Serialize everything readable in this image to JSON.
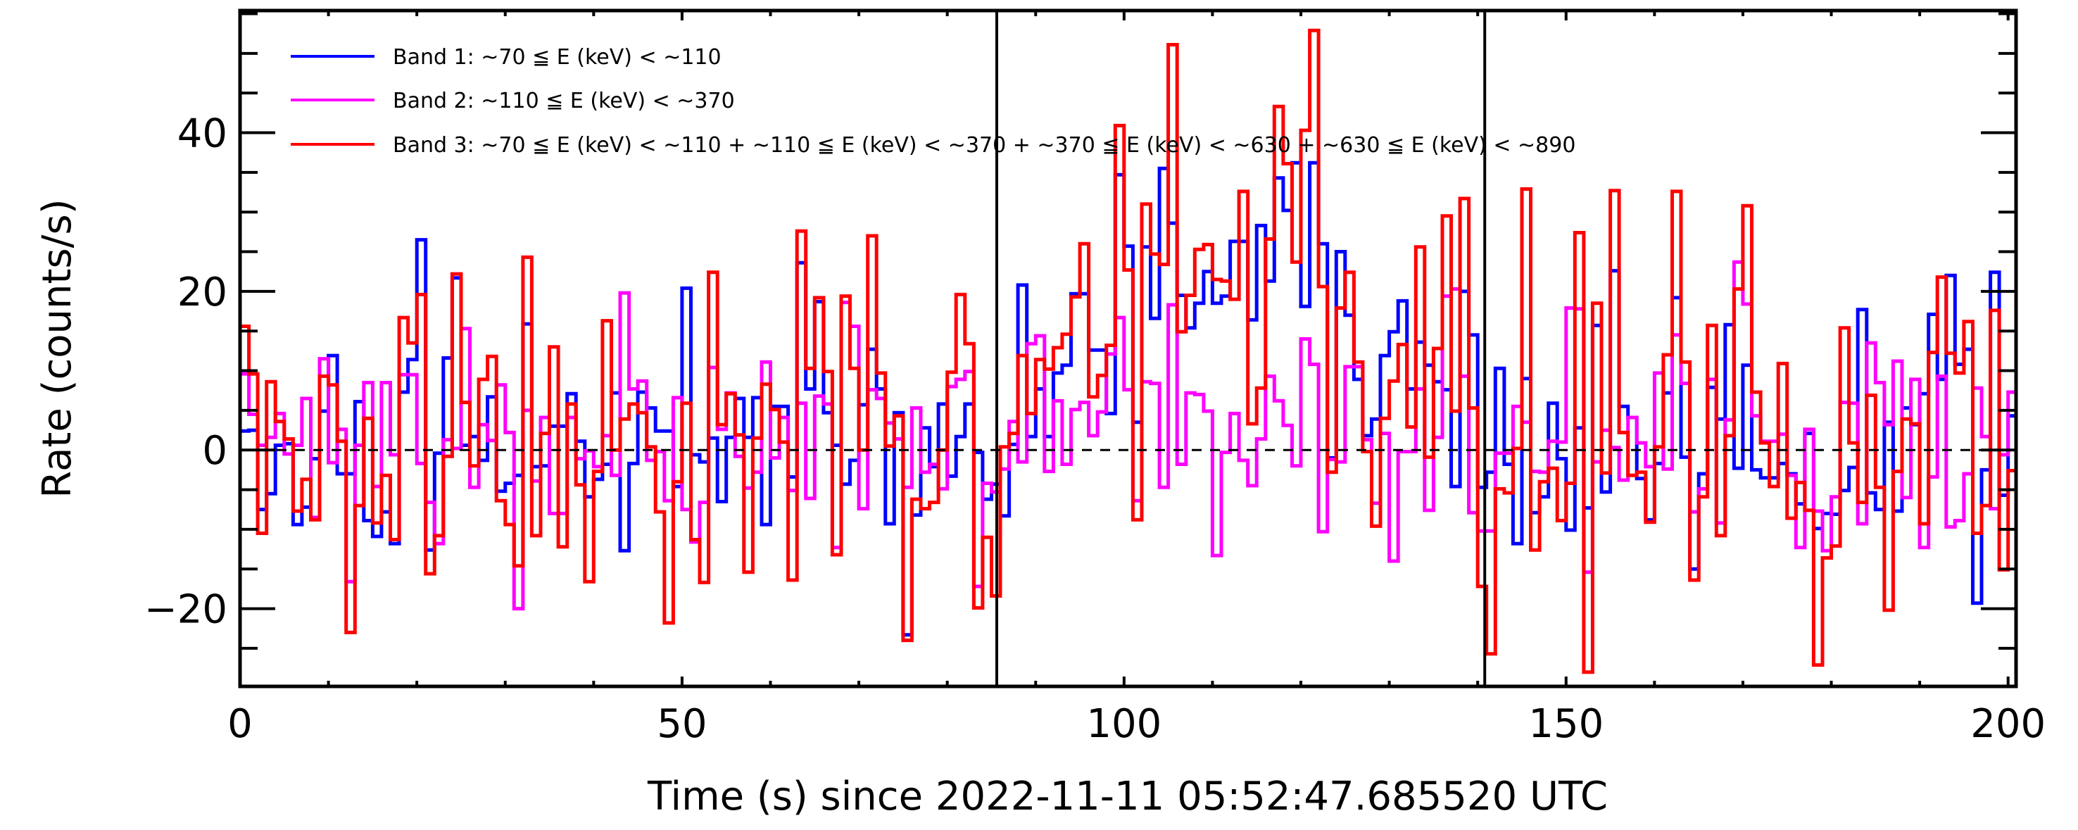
{
  "chart_data": {
    "type": "line",
    "style": "histogram-step",
    "xlabel": "Time (s) since 2022-11-11 05:52:47.685520 UTC",
    "ylabel": "Rate (counts/s)",
    "xlim": [
      0,
      200.9
    ],
    "ylim": [
      -29.8,
      55.4
    ],
    "x_bin_start": 0,
    "x_bin_width": 1,
    "xticks": [
      {
        "value": 0,
        "label": "0"
      },
      {
        "value": 50,
        "label": "50"
      },
      {
        "value": 100,
        "label": "100"
      },
      {
        "value": 150,
        "label": "150"
      },
      {
        "value": 200,
        "label": "200"
      }
    ],
    "yticks": [
      {
        "value": -20,
        "label": "−20"
      },
      {
        "value": 0,
        "label": "0"
      },
      {
        "value": 20,
        "label": "20"
      },
      {
        "value": 40,
        "label": "40"
      }
    ],
    "x_minor_step": 10,
    "y_minor_step": 5,
    "reference_hline": 0,
    "vertical_markers": [
      85.6,
      140.8
    ],
    "legend_position": "top-left",
    "series": [
      {
        "name": "Band 1: ~70 ≦ E (keV) < ~110",
        "color": "#0000ff",
        "values": [
          2.4,
          2.5,
          -7.5,
          -5.5,
          0.6,
          0.8,
          -9.4,
          -7.2,
          -1.1,
          4.9,
          11.9,
          -3,
          -3,
          6.1,
          -8.9,
          -10.9,
          -7.8,
          -11.8,
          7.3,
          11.4,
          26.5,
          -12.6,
          -0.4,
          11.6,
          21.7,
          0.6,
          1.7,
          -1.3,
          6.7,
          -5.2,
          -4.2,
          -3.2,
          15.9,
          -2.1,
          -2,
          3,
          3,
          7.1,
          1.1,
          -5.9,
          -3.7,
          -1.8,
          7.2,
          -12.7,
          -1.7,
          7.3,
          5.3,
          2.4,
          2.4,
          -4.6,
          20.4,
          -0.6,
          -1.5,
          1.5,
          -6.5,
          1.6,
          6.5,
          1.6,
          6.6,
          -9.4,
          5.5,
          5.5,
          -3.4,
          23.6,
          7.7,
          18.7,
          4.7,
          0.6,
          -4.3,
          -1.3,
          5.7,
          12.7,
          7.7,
          -9.3,
          4.7,
          -23.3,
          -8.2,
          2.8,
          -2.1,
          5.8,
          -3.3,
          1.7,
          5.8,
          -0.3,
          -6.2,
          -4.3,
          -8.3,
          0.7,
          20.8,
          1.7,
          7.7,
          1.7,
          9.7,
          10.7,
          19.7,
          19.7,
          12.6,
          12.6,
          4.6,
          34.7,
          25.7,
          3.5,
          25.6,
          16.6,
          35.5,
          28.6,
          19.5,
          15.4,
          18.5,
          22.5,
          18.5,
          19.4,
          26.3,
          26.3,
          16.4,
          28.3,
          21.3,
          34.3,
          30.2,
          36.2,
          18.1,
          36.2,
          26,
          -1,
          25,
          17,
          8.9,
          1.8,
          3.9,
          11.9,
          14.9,
          18.8,
          7.7,
          13.6,
          10.7,
          8.6,
          7.6,
          -4.6,
          20,
          14.5,
          -4.7,
          -2.8,
          10.3,
          -1.8,
          -11.8,
          9,
          -7.9,
          -5.9,
          5.9,
          -1.1,
          -10.1,
          2.8,
          -7.3,
          15.7,
          -5.3,
          22.6,
          5.5,
          4.1,
          -3.6,
          -8.8,
          -1.7,
          7.2,
          19.2,
          -0.9,
          -15,
          -3,
          7.9,
          3.9,
          15.8,
          -2.3,
          10.7,
          -2.5,
          -3.5,
          -3.5,
          -1.7,
          -3,
          -6.8,
          2.1,
          -9.9,
          -8,
          -8.1,
          -5.1,
          -2.2,
          17.7,
          -5.4,
          -7.5,
          3.5,
          -7.7,
          5.3,
          3.2,
          7.1,
          17.1,
          8.9,
          22,
          10.8,
          12.7,
          -19.3,
          -2.5,
          22.4,
          -5.7,
          4.3
        ]
      },
      {
        "name": "Band 2: ~110 ≦ E (keV) < ~370",
        "color": "#ff00ff",
        "values": [
          9.6,
          4.5,
          0.6,
          1.6,
          4.6,
          -0.5,
          0.6,
          6.5,
          -8.5,
          11.5,
          -1.6,
          2.6,
          -16.6,
          0.6,
          8.5,
          -4.6,
          8.5,
          -0.6,
          9.5,
          9.5,
          -1.7,
          -6.6,
          -11.8,
          1.3,
          0.2,
          15.3,
          -4.7,
          3.2,
          1.2,
          8.2,
          2.2,
          -20,
          5,
          -3.9,
          4.1,
          -8,
          -8,
          4.1,
          -1.1,
          -0.1,
          -2.1,
          1.8,
          -3.2,
          19.8,
          7.7,
          8.7,
          -1.3,
          -0.2,
          -6.4,
          6.6,
          -7.5,
          -11.6,
          -6.6,
          10.4,
          2.6,
          7.2,
          -0.8,
          -4.8,
          -2.8,
          11.1,
          -1,
          4.1,
          -5.1,
          5.9,
          -6.1,
          6.8,
          5.8,
          -12.3,
          18.6,
          15.6,
          -7.4,
          7.6,
          6.5,
          3.4,
          1.4,
          -4.7,
          5.3,
          -2.8,
          -1.8,
          -4.9,
          8,
          8.9,
          9.9,
          -17.2,
          -4.2,
          -5.3,
          -2.4,
          3.6,
          -1.5,
          13.4,
          14.4,
          -2.7,
          6.2,
          -1.8,
          5.1,
          6,
          1.8,
          4.8,
          12.1,
          16.7,
          7.6,
          -6.4,
          8.6,
          8.4,
          -4.7,
          18.3,
          -1.8,
          7.2,
          7,
          4.9,
          -13.3,
          -0.3,
          4.6,
          -1.3,
          -4.5,
          1.4,
          9.3,
          6.2,
          3.1,
          -2,
          14,
          10.8,
          -10.3,
          -1.2,
          -1.5,
          10.5,
          10.5,
          1.3,
          -6.7,
          2.1,
          -14,
          -0.2,
          -0.2,
          7.7,
          -7.6,
          1.6,
          19.4,
          20.3,
          9.3,
          -7.9,
          -10.2,
          -10.2,
          -0.4,
          -0.4,
          5.5,
          3.5,
          -2.7,
          -2.8,
          1.1,
          1,
          17.9,
          17.8,
          -15.4,
          -1.5,
          2.5,
          0.3,
          -3.8,
          4.1,
          0.9,
          -2.1,
          9.7,
          -2.4,
          14.5,
          8.4,
          -7.8,
          -4.9,
          8.9,
          -9.2,
          3.8,
          23.7,
          18.4,
          4.3,
          1.1,
          1.1,
          2,
          -3.2,
          -12.3,
          2.6,
          -7.7,
          -12.7,
          -5.9,
          6,
          5.9,
          -9.3,
          13.5,
          8.5,
          3.2,
          11.2,
          -6,
          8.9,
          -12.3,
          -3.4,
          9.3,
          -9.7,
          -8.9,
          -3,
          7.8,
          1.7,
          -7.4,
          -0.6,
          7.3
        ]
      },
      {
        "name": "Band 3: ~70 ≦ E (keV) < ~110 + ~110 ≦ E (keV) < ~370 + ~370 ≦ E (keV) < ~630 + ~630 ≦ E (keV) < ~890",
        "color": "#ff0000",
        "values": [
          15.6,
          9.6,
          -10.5,
          8.6,
          3.6,
          1.4,
          -7.7,
          -3.7,
          -8.8,
          9.3,
          8.2,
          1.1,
          -23,
          -7,
          4,
          -9.2,
          -3.2,
          -11.3,
          16.7,
          13.5,
          19.6,
          -15.6,
          -10.8,
          -0.8,
          22.2,
          6,
          -2,
          8.9,
          11.8,
          -6.4,
          -9.4,
          -14.6,
          24.3,
          -10.8,
          2.1,
          13,
          -12.2,
          5.8,
          -4.4,
          -16.6,
          -2.7,
          16.3,
          0,
          3.9,
          5.8,
          4.7,
          0.4,
          -7.8,
          -21.8,
          -4,
          5.9,
          -11.3,
          -16.7,
          22.4,
          3.2,
          7.1,
          1.9,
          -15.4,
          1.5,
          8.3,
          5.1,
          1,
          -16.4,
          27.6,
          10.3,
          19.2,
          9.9,
          -13.2,
          19.4,
          10.3,
          0,
          27,
          9.7,
          0.5,
          4.3,
          -24,
          -6.2,
          -7.4,
          -6.6,
          0,
          9.8,
          19.6,
          13.4,
          -19.9,
          -11,
          -18.4,
          0.4,
          2.1,
          11.9,
          4.6,
          11.4,
          10.2,
          12.9,
          14.6,
          19.3,
          26,
          6.7,
          9.4,
          13.2,
          40.9,
          22.7,
          -8.8,
          31,
          24.7,
          23.4,
          51.1,
          14.9,
          19.5,
          25.3,
          25.9,
          21.5,
          21.3,
          19,
          32.6,
          3.3,
          7.8,
          26.6,
          43.3,
          36.1,
          23.7,
          40.3,
          52.9,
          20.6,
          -2.8,
          17.9,
          22.4,
          11.1,
          -0.2,
          -9.6,
          4,
          8.7,
          13.3,
          2.9,
          25.6,
          -0.9,
          12.8,
          29.5,
          4.9,
          31.7,
          5.3,
          -17.2,
          -25.7,
          -4.9,
          -5.4,
          0.2,
          32.9,
          -12.6,
          -4,
          -2.3,
          -8.9,
          -4.2,
          27.4,
          -28,
          18.5,
          -2.9,
          32.7,
          2.2,
          -3.2,
          -2.8,
          -9.1,
          0.4,
          12,
          32.6,
          11.1,
          -16.4,
          -5.9,
          15.7,
          -10.8,
          1.8,
          20.3,
          30.8,
          7.3,
          0.9,
          -4.6,
          10.9,
          -8.6,
          -4.1,
          -7.6,
          -27.1,
          -13.6,
          -12.1,
          15.4,
          0.9,
          -6.6,
          6.9,
          -4.7,
          -20.2,
          -2.7,
          3.9,
          3.3,
          -9.3,
          12.3,
          21.8,
          12.2,
          9.7,
          16.2,
          -10.5,
          -7,
          17.6,
          -15.1,
          -2.6
        ]
      }
    ]
  }
}
